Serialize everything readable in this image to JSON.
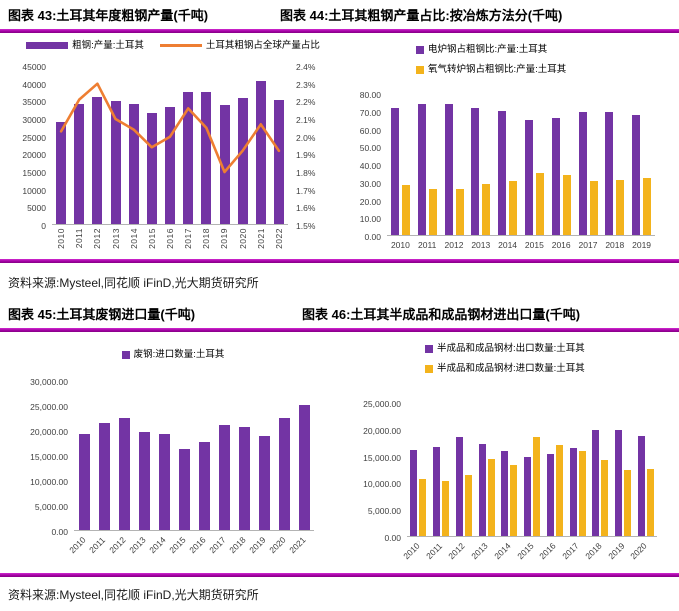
{
  "page": {
    "sources": [
      "资料来源:Mysteel,同花顺 iFinD,光大期货研究所",
      "资料来源:Mysteel,同花顺 iFinD,光大期货研究所"
    ],
    "accent_rule_color": "#A402A4",
    "colors": {
      "purple": "#7334A4",
      "orange": "#EE7E32",
      "yellow": "#F3B31C"
    }
  },
  "chart_data": [
    {
      "id": "figure-43",
      "type": "bar+line",
      "title": "图表 43:土耳其年度粗钢产量(千吨)",
      "categories": [
        "2010",
        "2011",
        "2012",
        "2013",
        "2014",
        "2015",
        "2016",
        "2017",
        "2018",
        "2019",
        "2020",
        "2021",
        "2022"
      ],
      "series": [
        {
          "name": "粗钢:产量:土耳其",
          "kind": "bar",
          "axis": "left",
          "color": "#7334A4",
          "values": [
            29000,
            34100,
            35900,
            34700,
            34000,
            31500,
            33200,
            37500,
            37300,
            33700,
            35800,
            40400,
            35100
          ]
        },
        {
          "name": "土耳其粗钢占全球产量占比",
          "kind": "line",
          "axis": "right",
          "color": "#EE7E32",
          "values": [
            2.03,
            2.21,
            2.3,
            2.1,
            2.04,
            1.94,
            2.0,
            2.16,
            2.05,
            1.8,
            1.92,
            2.07,
            1.92
          ]
        }
      ],
      "y_axis": {
        "min": 0,
        "max": 45000,
        "ticks": [
          "45000",
          "40000",
          "35000",
          "30000",
          "25000",
          "20000",
          "15000",
          "10000",
          "5000",
          "0"
        ]
      },
      "y2_axis": {
        "min": 1.5,
        "max": 2.4,
        "ticks": [
          "2.4%",
          "2.3%",
          "2.2%",
          "2.1%",
          "2.0%",
          "1.9%",
          "1.8%",
          "1.7%",
          "1.6%",
          "1.5%"
        ]
      },
      "legend_position": "top-center",
      "grid": false,
      "xlabel": "",
      "ylabel": ""
    },
    {
      "id": "figure-44",
      "type": "bar",
      "title": "图表 44:土耳其粗钢产量占比:按冶炼方法分(千吨)",
      "categories": [
        "2010",
        "2011",
        "2012",
        "2013",
        "2014",
        "2015",
        "2016",
        "2017",
        "2018",
        "2019"
      ],
      "series": [
        {
          "name": "电炉钢占粗钢比:产量:土耳其",
          "kind": "bar",
          "color": "#7334A4",
          "values": [
            71.8,
            74.0,
            74.0,
            71.3,
            69.7,
            64.9,
            65.8,
            69.3,
            69.2,
            67.8
          ]
        },
        {
          "name": "氧气转炉钢占粗钢比:产量:土耳其",
          "kind": "bar",
          "color": "#F3B31C",
          "values": [
            28.2,
            26.0,
            26.0,
            28.7,
            30.3,
            35.1,
            34.0,
            30.7,
            30.8,
            32.2
          ]
        }
      ],
      "y_axis": {
        "min": 0,
        "max": 80,
        "ticks": [
          "80.00",
          "70.00",
          "60.00",
          "50.00",
          "40.00",
          "30.00",
          "20.00",
          "10.00",
          "0.00"
        ]
      },
      "legend_position": "top-left-stacked",
      "grid": false,
      "xlabel": "",
      "ylabel": ""
    },
    {
      "id": "figure-45",
      "type": "bar",
      "title": "图表 45:土耳其废钢进口量(千吨)",
      "categories": [
        "2010",
        "2011",
        "2012",
        "2013",
        "2014",
        "2015",
        "2016",
        "2017",
        "2018",
        "2019",
        "2020",
        "2021"
      ],
      "series": [
        {
          "name": "废钢:进口数量:土耳其",
          "kind": "bar",
          "color": "#7334A4",
          "values": [
            19300,
            21500,
            22400,
            19700,
            19200,
            16250,
            17700,
            21000,
            20700,
            18900,
            22500,
            25000
          ]
        }
      ],
      "y_axis": {
        "min": 0,
        "max": 30000,
        "ticks": [
          "30,000.00",
          "25,000.00",
          "20,000.00",
          "15,000.00",
          "10,000.00",
          "5,000.00",
          "0.00"
        ]
      },
      "legend_position": "top-center",
      "grid": false,
      "xlabel": "",
      "ylabel": ""
    },
    {
      "id": "figure-46",
      "type": "bar",
      "title": "图表 46:土耳其半成品和成品钢材进出口量(千吨)",
      "categories": [
        "2010",
        "2011",
        "2012",
        "2013",
        "2014",
        "2015",
        "2016",
        "2017",
        "2018",
        "2019",
        "2020"
      ],
      "series": [
        {
          "name": "半成品和成品钢材:出口数量:土耳其",
          "kind": "bar",
          "color": "#7334A4",
          "values": [
            16000,
            16600,
            18400,
            17200,
            15900,
            14800,
            15300,
            16400,
            19800,
            19700,
            18600
          ]
        },
        {
          "name": "半成品和成品钢材:进口数量:土耳其",
          "kind": "bar",
          "color": "#F3B31C",
          "values": [
            10700,
            10200,
            11300,
            14300,
            13200,
            18500,
            17000,
            15800,
            14100,
            12300,
            12500
          ]
        }
      ],
      "y_axis": {
        "min": 0,
        "max": 25000,
        "ticks": [
          "25,000.00",
          "20,000.00",
          "15,000.00",
          "10,000.00",
          "5,000.00",
          "0.00"
        ]
      },
      "legend_position": "top-left-stacked",
      "grid": false,
      "xlabel": "",
      "ylabel": ""
    }
  ]
}
